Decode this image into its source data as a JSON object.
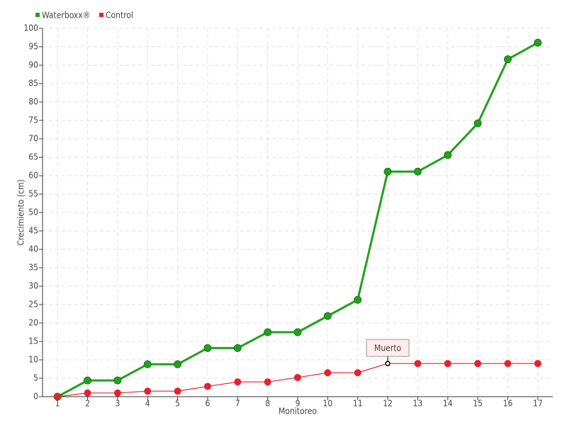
{
  "chart_data": {
    "type": "line",
    "x": [
      1,
      2,
      3,
      4,
      5,
      6,
      7,
      8,
      9,
      10,
      11,
      12,
      13,
      14,
      15,
      16,
      17
    ],
    "series": [
      {
        "name": "Waterboxx®",
        "color": "#22a01e",
        "values": [
          0,
          4.4,
          4.4,
          8.8,
          8.8,
          13.2,
          13.2,
          17.5,
          17.5,
          21.9,
          26.3,
          61.1,
          61.1,
          65.6,
          74.2,
          91.6,
          96.1
        ]
      },
      {
        "name": "Control",
        "color": "#e8202e",
        "values": [
          0,
          1,
          1,
          1.5,
          1.5,
          2.8,
          4,
          4,
          5.2,
          6.5,
          6.5,
          9,
          9,
          9,
          9,
          9,
          9
        ]
      }
    ],
    "xlabel": "Monitoreo",
    "ylabel": "Crecimiento (cm)",
    "xlim": [
      0.5,
      17.5
    ],
    "xticks": [
      1,
      2,
      3,
      4,
      5,
      6,
      7,
      8,
      9,
      10,
      11,
      12,
      13,
      14,
      15,
      16,
      17
    ],
    "ylim": [
      0,
      100
    ],
    "yticks": [
      0,
      5,
      10,
      15,
      20,
      25,
      30,
      35,
      40,
      45,
      50,
      55,
      60,
      65,
      70,
      75,
      80,
      85,
      90,
      95,
      100
    ],
    "grid": true,
    "legend": "top-left",
    "annotations": [
      {
        "text": "Muerto",
        "x": 12,
        "y": 9
      }
    ]
  }
}
